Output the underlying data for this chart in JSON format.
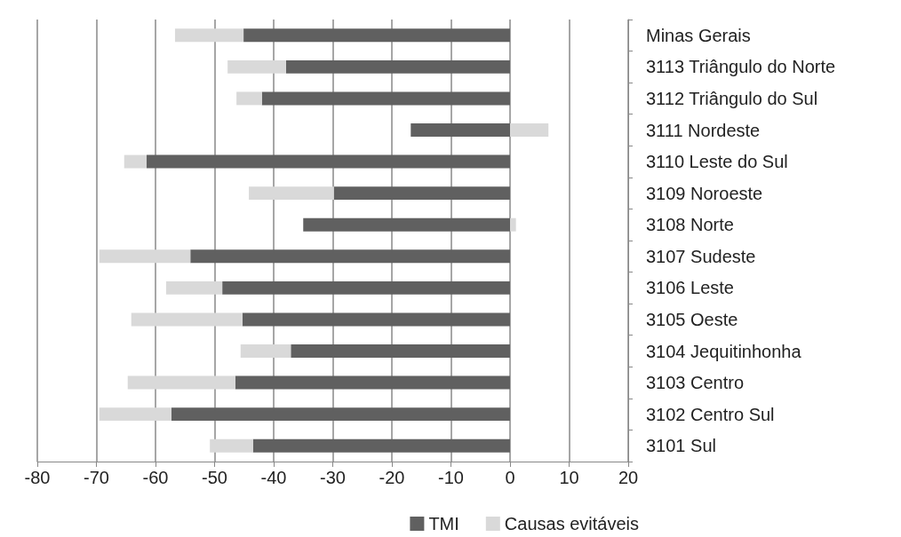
{
  "chart_data": {
    "type": "bar",
    "orientation": "horizontal",
    "stacked": true,
    "categories": [
      "Minas Gerais",
      "3113 Triângulo do Norte",
      "3112 Triângulo do Sul",
      "3111 Nordeste",
      "3110 Leste do Sul",
      "3109 Noroeste",
      "3108 Norte",
      "3107 Sudeste",
      "3106 Leste",
      "3105 Oeste",
      "3104 Jequitinhonha",
      "3103 Centro",
      "3102 Centro Sul",
      "3101 Sul"
    ],
    "series": [
      {
        "name": "TMI",
        "color": "#606060",
        "values": [
          -45.1,
          -37.9,
          -42,
          -16.8,
          -61.5,
          -29.8,
          -35,
          -54.1,
          -48.7,
          -45.3,
          -37.1,
          -46.5,
          -57.3,
          -43.5
        ]
      },
      {
        "name": "Causas evitáveis",
        "color": "#d9d9d9",
        "values": [
          -11.6,
          -9.9,
          -4.3,
          6.5,
          -3.8,
          -14.4,
          1,
          -15.4,
          -9.5,
          -18.8,
          -8.5,
          -18.2,
          -12.2,
          -7.3
        ]
      }
    ],
    "xlim": [
      -80,
      20
    ],
    "xticks": [
      -80,
      -70,
      -60,
      -50,
      -40,
      -30,
      -20,
      -10,
      0,
      10,
      20
    ],
    "grid": "x",
    "legend": "bottom"
  }
}
